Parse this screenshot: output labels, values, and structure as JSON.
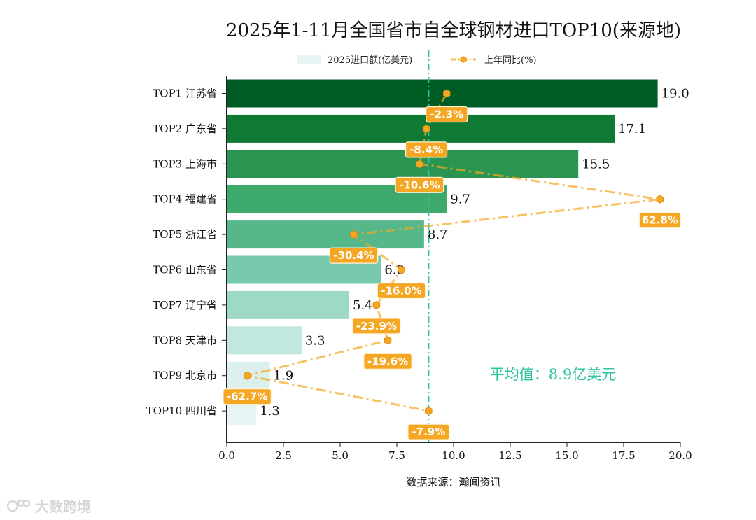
{
  "chart_data": {
    "type": "bar",
    "orientation": "horizontal",
    "title": "2025年1-11月全国省市自全球钢材进口TOP10(来源地)",
    "categories": [
      "TOP1 江苏省",
      "TOP2 广东省",
      "TOP3 上海市",
      "TOP4 福建省",
      "TOP5 浙江省",
      "TOP6 山东省",
      "TOP7 辽宁省",
      "TOP8 天津市",
      "TOP9 北京市",
      "TOP10 四川省"
    ],
    "series": [
      {
        "name": "2025进口额(亿美元)",
        "kind": "bar",
        "values": [
          19.0,
          17.1,
          15.5,
          9.7,
          8.7,
          6.8,
          5.4,
          3.3,
          1.9,
          1.3
        ],
        "value_labels": [
          "19.0",
          "17.1",
          "15.5",
          "9.7",
          "8.7",
          "6.8",
          "5.4",
          "3.3",
          "1.9",
          "1.3"
        ],
        "colors": [
          "#005c25",
          "#0e7a34",
          "#2a9550",
          "#3daa6c",
          "#56b88a",
          "#78caad",
          "#9ed9c8",
          "#c2e7de",
          "#dcf1ee",
          "#e8f5f5"
        ]
      },
      {
        "name": "上年同比(%)",
        "kind": "line",
        "values": [
          -2.3,
          -8.4,
          -10.6,
          62.8,
          -30.4,
          -16.0,
          -23.9,
          -19.6,
          -62.7,
          -7.9
        ],
        "value_labels": [
          "-2.3%",
          "-8.4%",
          "-10.6%",
          "62.8%",
          "-30.4%",
          "-16.0%",
          "-23.9%",
          "-19.6%",
          "-62.7%",
          "-7.9%"
        ],
        "marker_x_in_axis_units": [
          9.7,
          8.8,
          8.5,
          19.1,
          5.6,
          7.7,
          6.6,
          7.1,
          0.9,
          8.9
        ],
        "color": "#f5a623"
      }
    ],
    "xlim": [
      0,
      20
    ],
    "xticks": [
      "0.0",
      "2.5",
      "5.0",
      "7.5",
      "10.0",
      "12.5",
      "15.0",
      "17.5",
      "20.0"
    ],
    "xlabel": "数据来源：瀚闻资讯",
    "average": {
      "value": 8.9,
      "label": "平均值：8.9亿美元",
      "color": "#2ec4a0"
    },
    "legend_position": "top-center"
  },
  "watermark": {
    "text": "大数跨境"
  }
}
